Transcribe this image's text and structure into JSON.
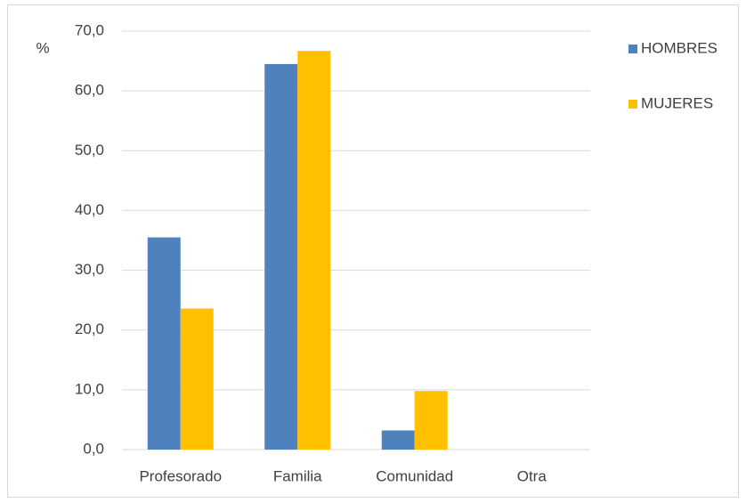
{
  "chart_data": {
    "type": "bar",
    "y_label": "%",
    "categories": [
      "Profesorado",
      "Familia",
      "Comunidad",
      "Otra"
    ],
    "series": [
      {
        "name": "HOMBRES",
        "color": "#4f81bd",
        "values": [
          35.5,
          64.5,
          3.2,
          0
        ]
      },
      {
        "name": "MUJERES",
        "color": "#ffc000",
        "values": [
          23.6,
          66.7,
          9.8,
          0
        ]
      }
    ],
    "ylim": [
      0,
      70
    ],
    "yticks": [
      {
        "value": 0,
        "label": "0,0"
      },
      {
        "value": 10,
        "label": "10,0"
      },
      {
        "value": 20,
        "label": "20,0"
      },
      {
        "value": 30,
        "label": "30,0"
      },
      {
        "value": 40,
        "label": "40,0"
      },
      {
        "value": 50,
        "label": "50,0"
      },
      {
        "value": 60,
        "label": "60,0"
      },
      {
        "value": 70,
        "label": "70,0"
      }
    ],
    "grid": true,
    "legend": "right"
  }
}
